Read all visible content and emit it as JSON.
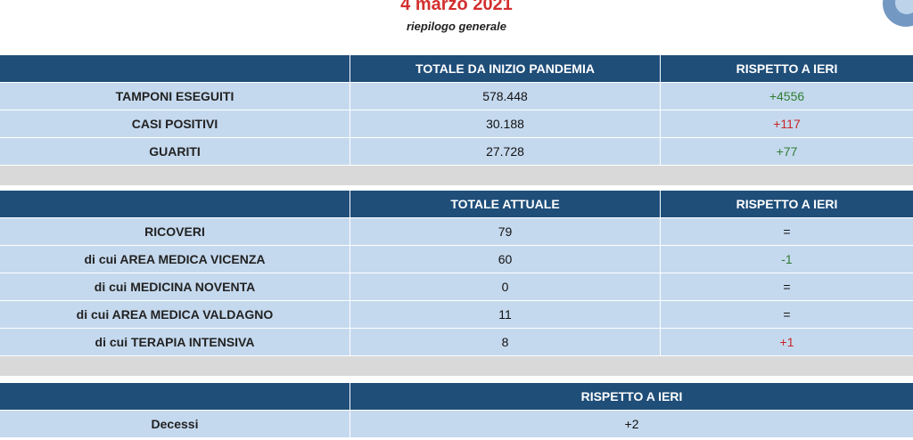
{
  "header": {
    "date": "4 marzo 2021",
    "subtitle": "riepilogo generale"
  },
  "table1": {
    "headers": [
      "",
      "TOTALE DA INIZIO PANDEMIA",
      "RISPETTO A IERI"
    ],
    "rows": [
      {
        "label": "TAMPONI ESEGUITI",
        "total": "578.448",
        "delta": "+4556",
        "delta_color": "#2e7d32"
      },
      {
        "label": "CASI POSITIVI",
        "total": "30.188",
        "delta": "+117",
        "delta_color": "#c62828"
      },
      {
        "label": "GUARITI",
        "total": "27.728",
        "delta": "+77",
        "delta_color": "#2e7d32"
      }
    ]
  },
  "table2": {
    "headers": [
      "",
      "TOTALE ATTUALE",
      "RISPETTO A IERI"
    ],
    "rows": [
      {
        "label": "RICOVERI",
        "total": "79",
        "delta": "="
      },
      {
        "label": "di cui AREA MEDICA VICENZA",
        "total": "60",
        "delta": "-1",
        "delta_color": "#2e7d32"
      },
      {
        "label": "di cui MEDICINA NOVENTA",
        "total": "0",
        "delta": "="
      },
      {
        "label": "di cui AREA MEDICA VALDAGNO",
        "total": "11",
        "delta": "="
      },
      {
        "label": "di cui TERAPIA INTENSIVA",
        "total": "8",
        "delta": "+1",
        "delta_color": "#c62828"
      }
    ]
  },
  "table3": {
    "headers": [
      "",
      "RISPETTO A IERI"
    ],
    "rows": [
      {
        "label": "Decessi",
        "delta": "+2"
      }
    ]
  },
  "colors": {
    "header_bg": "#1f4e79",
    "row_bg": "#c5d9ee",
    "separator_bg": "#d9d9d9",
    "title_red": "#d32f2f"
  }
}
